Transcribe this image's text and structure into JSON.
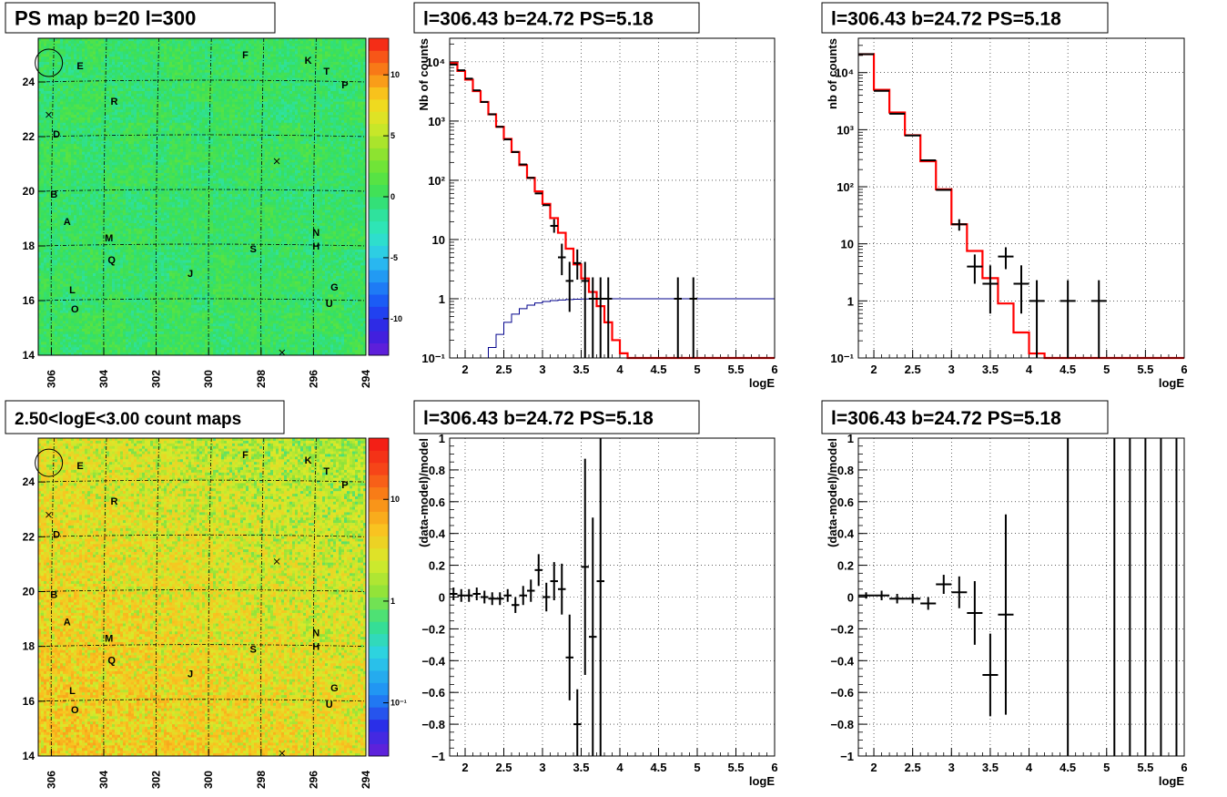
{
  "page": {
    "background": "#ffffff"
  },
  "colors": {
    "data": "#000000",
    "model": "#ff0000",
    "efficiency": "#00008b",
    "grid": "#000000"
  },
  "maps": [
    {
      "id": "psmap",
      "title": "PS map b=20 l=300",
      "xticks": [
        "306",
        "304",
        "302",
        "300",
        "298",
        "296",
        "294"
      ],
      "yticks": [
        "14",
        "16",
        "18",
        "20",
        "22",
        "24"
      ],
      "colorbar": {
        "scale": "linear",
        "min": -13,
        "max": 13,
        "ticks": [
          {
            "v": 10,
            "label": "10"
          },
          {
            "v": 5,
            "label": "5"
          },
          {
            "v": 0,
            "label": "0"
          },
          {
            "v": -5,
            "label": "-5"
          },
          {
            "v": -10,
            "label": "-10"
          }
        ]
      },
      "fill": "psmap"
    },
    {
      "id": "countmap",
      "title": "2.50<logE<3.00 count maps",
      "xticks": [
        "306",
        "304",
        "302",
        "300",
        "298",
        "296",
        "294"
      ],
      "yticks": [
        "14",
        "16",
        "18",
        "20",
        "22",
        "24"
      ],
      "colorbar": {
        "scale": "log",
        "min": 0.03,
        "max": 40,
        "ticks": [
          {
            "v": 10,
            "label": "10"
          },
          {
            "v": 1,
            "label": "1"
          },
          {
            "v": 0.1,
            "label": "10⁻¹"
          }
        ]
      },
      "fill": "countmap"
    }
  ],
  "sources": [
    {
      "label": "E",
      "l": 304.9,
      "b": 24.6
    },
    {
      "label": "F",
      "l": 298.6,
      "b": 25.0
    },
    {
      "label": "K",
      "l": 296.2,
      "b": 24.8
    },
    {
      "label": "T",
      "l": 295.5,
      "b": 24.4
    },
    {
      "label": "P",
      "l": 294.8,
      "b": 23.9
    },
    {
      "label": "R",
      "l": 303.6,
      "b": 23.3
    },
    {
      "label": "D",
      "l": 305.8,
      "b": 22.1
    },
    {
      "label": "B",
      "l": 305.9,
      "b": 19.9
    },
    {
      "label": "A",
      "l": 305.4,
      "b": 18.9
    },
    {
      "label": "M",
      "l": 303.8,
      "b": 18.3
    },
    {
      "label": "N",
      "l": 295.9,
      "b": 18.5
    },
    {
      "label": "H",
      "l": 295.9,
      "b": 18.0
    },
    {
      "label": "S",
      "l": 298.3,
      "b": 17.9
    },
    {
      "label": "Q",
      "l": 303.7,
      "b": 17.5
    },
    {
      "label": "J",
      "l": 300.7,
      "b": 17.0
    },
    {
      "label": "G",
      "l": 295.2,
      "b": 16.5
    },
    {
      "label": "L",
      "l": 305.2,
      "b": 16.4
    },
    {
      "label": "U",
      "l": 295.4,
      "b": 15.9
    },
    {
      "label": "O",
      "l": 305.1,
      "b": 15.7
    }
  ],
  "crosses": [
    {
      "l": 306.1,
      "b": 22.8
    },
    {
      "l": 297.4,
      "b": 21.1
    },
    {
      "l": 297.2,
      "b": 14.1
    }
  ],
  "circle": {
    "l": 306.2,
    "b": 24.7
  },
  "chart_data": [
    {
      "type": "line",
      "title": "l=306.43 b=24.72 PS=5.18",
      "xlabel": "logE",
      "ylabel": "Nb of counts",
      "xlim": [
        1.8,
        6
      ],
      "ylim": [
        0.1,
        25000
      ],
      "yscale": "log",
      "xticks": [
        {
          "v": 2,
          "label": "2"
        },
        {
          "v": 2.5,
          "label": "2.5"
        },
        {
          "v": 3,
          "label": "3"
        },
        {
          "v": 3.5,
          "label": "3.5"
        },
        {
          "v": 4,
          "label": "4"
        },
        {
          "v": 4.5,
          "label": "4.5"
        },
        {
          "v": 5,
          "label": "5"
        },
        {
          "v": 5.5,
          "label": "5.5"
        },
        {
          "v": 6,
          "label": "6"
        }
      ],
      "yticks": [
        {
          "v": 0.1,
          "label": "10⁻¹"
        },
        {
          "v": 1,
          "label": "1"
        },
        {
          "v": 10,
          "label": "10"
        },
        {
          "v": 100,
          "label": "10²"
        },
        {
          "v": 1000,
          "label": "10³"
        },
        {
          "v": 10000,
          "label": "10⁴"
        }
      ],
      "grid": true,
      "model_bins": {
        "edges": [
          1.8,
          1.9,
          2.0,
          2.1,
          2.2,
          2.3,
          2.4,
          2.5,
          2.6,
          2.7,
          2.8,
          2.9,
          3.0,
          3.1,
          3.2,
          3.3,
          3.4,
          3.5,
          3.6,
          3.7,
          3.8,
          3.9,
          4.0,
          4.1,
          6.0
        ],
        "values": [
          9500,
          7000,
          5000,
          3200,
          2100,
          1300,
          800,
          500,
          300,
          180,
          110,
          65,
          40,
          23,
          13,
          7,
          3.8,
          2.2,
          1.3,
          0.75,
          0.4,
          0.2,
          0.12,
          0.1
        ]
      },
      "efficiency_bins": {
        "edges": [
          2.2,
          2.3,
          2.4,
          2.5,
          2.6,
          2.7,
          2.8,
          2.9,
          3.0,
          3.1,
          3.2,
          3.3,
          3.4,
          3.5,
          3.6,
          3.7,
          3.8,
          6.0
        ],
        "values": [
          0.1,
          0.15,
          0.25,
          0.4,
          0.55,
          0.68,
          0.78,
          0.85,
          0.9,
          0.93,
          0.95,
          0.97,
          0.98,
          0.99,
          0.99,
          1.0,
          1.0
        ]
      },
      "points": [
        {
          "x": 1.85,
          "y": 9000,
          "xe": 0.05
        },
        {
          "x": 1.95,
          "y": 7200,
          "xe": 0.05
        },
        {
          "x": 2.05,
          "y": 5200,
          "xe": 0.05
        },
        {
          "x": 2.15,
          "y": 3300,
          "xe": 0.05
        },
        {
          "x": 2.25,
          "y": 2100,
          "xe": 0.05
        },
        {
          "x": 2.35,
          "y": 1300,
          "xe": 0.05
        },
        {
          "x": 2.45,
          "y": 800,
          "xe": 0.05
        },
        {
          "x": 2.55,
          "y": 490,
          "xe": 0.05
        },
        {
          "x": 2.65,
          "y": 300,
          "xe": 0.05
        },
        {
          "x": 2.75,
          "y": 185,
          "xe": 0.05
        },
        {
          "x": 2.85,
          "y": 110,
          "xe": 0.05
        },
        {
          "x": 2.95,
          "y": 60,
          "xe": 0.05
        },
        {
          "x": 3.05,
          "y": 38,
          "xe": 0.05
        },
        {
          "x": 3.15,
          "y": 17,
          "xe": 0.05,
          "ylo": 13,
          "yhi": 22
        },
        {
          "x": 3.25,
          "y": 5,
          "xe": 0.05,
          "ylo": 2.5,
          "yhi": 8.5
        },
        {
          "x": 3.35,
          "y": 2,
          "xe": 0.05,
          "ylo": 0.6,
          "yhi": 4.2
        },
        {
          "x": 3.45,
          "y": 4,
          "xe": 0.05,
          "ylo": 2.1,
          "yhi": 6.8
        },
        {
          "x": 3.55,
          "y": 2,
          "xe": 0.05,
          "ylo": 0.1,
          "yhi": 4.2
        },
        {
          "x": 3.65,
          "y": 1,
          "xe": 0.05,
          "ylo": 0.1,
          "yhi": 2.3
        },
        {
          "x": 3.75,
          "y": 1,
          "xe": 0.05,
          "ylo": 0.1,
          "yhi": 2.3
        },
        {
          "x": 3.85,
          "y": 1,
          "xe": 0.05,
          "ylo": 0.1,
          "yhi": 2.3
        },
        {
          "x": 4.75,
          "y": 1,
          "xe": 0.05,
          "ylo": 0.1,
          "yhi": 2.3
        },
        {
          "x": 4.95,
          "y": 1,
          "xe": 0.05,
          "ylo": 0.1,
          "yhi": 2.3
        }
      ]
    },
    {
      "type": "line",
      "title": "l=306.43 b=24.72 PS=5.18",
      "xlabel": "logE",
      "ylabel": "nb of counts",
      "xlim": [
        1.8,
        6
      ],
      "ylim": [
        0.1,
        40000
      ],
      "yscale": "log",
      "xticks": [
        {
          "v": 2,
          "label": "2"
        },
        {
          "v": 2.5,
          "label": "2.5"
        },
        {
          "v": 3,
          "label": "3"
        },
        {
          "v": 3.5,
          "label": "3.5"
        },
        {
          "v": 4,
          "label": "4"
        },
        {
          "v": 4.5,
          "label": "4.5"
        },
        {
          "v": 5,
          "label": "5"
        },
        {
          "v": 5.5,
          "label": "5.5"
        },
        {
          "v": 6,
          "label": "6"
        }
      ],
      "yticks": [
        {
          "v": 0.1,
          "label": "10⁻¹"
        },
        {
          "v": 1,
          "label": "1"
        },
        {
          "v": 10,
          "label": "10"
        },
        {
          "v": 100,
          "label": "10²"
        },
        {
          "v": 1000,
          "label": "10³"
        },
        {
          "v": 10000,
          "label": "10⁴"
        }
      ],
      "grid": true,
      "model_bins": {
        "edges": [
          1.8,
          2.0,
          2.2,
          2.4,
          2.6,
          2.8,
          3.0,
          3.2,
          3.4,
          3.6,
          3.8,
          4.0,
          4.2,
          6.0
        ],
        "values": [
          21000,
          5000,
          2000,
          800,
          280,
          90,
          22,
          7.5,
          2.5,
          0.9,
          0.28,
          0.12,
          0.1
        ]
      },
      "efficiency_bins": null,
      "points": [
        {
          "x": 1.9,
          "y": 21000,
          "xe": 0.1
        },
        {
          "x": 2.1,
          "y": 4800,
          "xe": 0.1
        },
        {
          "x": 2.3,
          "y": 1900,
          "xe": 0.1
        },
        {
          "x": 2.5,
          "y": 790,
          "xe": 0.1
        },
        {
          "x": 2.7,
          "y": 290,
          "xe": 0.1
        },
        {
          "x": 2.9,
          "y": 88,
          "xe": 0.1
        },
        {
          "x": 3.1,
          "y": 22,
          "xe": 0.1,
          "ylo": 17,
          "yhi": 27
        },
        {
          "x": 3.3,
          "y": 4,
          "xe": 0.1,
          "ylo": 2,
          "yhi": 6.5
        },
        {
          "x": 3.5,
          "y": 2,
          "xe": 0.1,
          "ylo": 0.6,
          "yhi": 4.2
        },
        {
          "x": 3.7,
          "y": 6,
          "xe": 0.1,
          "ylo": 3.6,
          "yhi": 8.7
        },
        {
          "x": 3.9,
          "y": 2,
          "xe": 0.1,
          "ylo": 0.6,
          "yhi": 4.2
        },
        {
          "x": 4.1,
          "y": 1,
          "xe": 0.1,
          "ylo": 0.1,
          "yhi": 2.3
        },
        {
          "x": 4.5,
          "y": 1,
          "xe": 0.1,
          "ylo": 0.1,
          "yhi": 2.3
        },
        {
          "x": 4.9,
          "y": 1,
          "xe": 0.1,
          "ylo": 0.1,
          "yhi": 2.3
        }
      ]
    },
    {
      "type": "scatter",
      "title": "l=306.43 b=24.72 PS=5.18",
      "xlabel": "logE",
      "ylabel": "(data-model)/model",
      "xlim": [
        1.8,
        6
      ],
      "ylim": [
        -1,
        1
      ],
      "yscale": "linear",
      "xticks": [
        {
          "v": 2,
          "label": "2"
        },
        {
          "v": 2.5,
          "label": "2.5"
        },
        {
          "v": 3,
          "label": "3"
        },
        {
          "v": 3.5,
          "label": "3.5"
        },
        {
          "v": 4,
          "label": "4"
        },
        {
          "v": 4.5,
          "label": "4.5"
        },
        {
          "v": 5,
          "label": "5"
        },
        {
          "v": 5.5,
          "label": "5.5"
        },
        {
          "v": 6,
          "label": "6"
        }
      ],
      "yticks": [
        {
          "v": -1,
          "label": "−1"
        },
        {
          "v": -0.8,
          "label": "−0.8"
        },
        {
          "v": -0.6,
          "label": "−0.6"
        },
        {
          "v": -0.4,
          "label": "−0.4"
        },
        {
          "v": -0.2,
          "label": "−0.2"
        },
        {
          "v": 0,
          "label": "0"
        },
        {
          "v": 0.2,
          "label": "0.2"
        },
        {
          "v": 0.4,
          "label": "0.4"
        },
        {
          "v": 0.6,
          "label": "0.6"
        },
        {
          "v": 0.8,
          "label": "0.8"
        },
        {
          "v": 1,
          "label": "1"
        }
      ],
      "grid": true,
      "points": [
        {
          "x": 1.85,
          "y": 0.02,
          "xe": 0.05,
          "ye": 0.04
        },
        {
          "x": 1.95,
          "y": 0.01,
          "xe": 0.05,
          "ye": 0.04
        },
        {
          "x": 2.05,
          "y": 0.01,
          "xe": 0.05,
          "ye": 0.04
        },
        {
          "x": 2.15,
          "y": 0.02,
          "xe": 0.05,
          "ye": 0.04
        },
        {
          "x": 2.25,
          "y": 0.0,
          "xe": 0.05,
          "ye": 0.04
        },
        {
          "x": 2.35,
          "y": -0.01,
          "xe": 0.05,
          "ye": 0.04
        },
        {
          "x": 2.45,
          "y": -0.01,
          "xe": 0.05,
          "ye": 0.04
        },
        {
          "x": 2.55,
          "y": 0.01,
          "xe": 0.05,
          "ye": 0.04
        },
        {
          "x": 2.65,
          "y": -0.05,
          "xe": 0.05,
          "ye": 0.05
        },
        {
          "x": 2.75,
          "y": 0.01,
          "xe": 0.05,
          "ye": 0.06
        },
        {
          "x": 2.85,
          "y": 0.04,
          "xe": 0.05,
          "ye": 0.07
        },
        {
          "x": 2.95,
          "y": 0.17,
          "xe": 0.05,
          "ye": 0.1
        },
        {
          "x": 3.05,
          "y": 0.0,
          "xe": 0.05,
          "ye": 0.09
        },
        {
          "x": 3.15,
          "y": 0.1,
          "xe": 0.05,
          "ye": 0.12
        },
        {
          "x": 3.25,
          "y": 0.05,
          "xe": 0.05,
          "ye": 0.16
        },
        {
          "x": 3.35,
          "y": -0.38,
          "xe": 0.05,
          "ye": 0.27
        },
        {
          "x": 3.45,
          "y": -0.8,
          "xe": 0.05,
          "ye": 0.22
        },
        {
          "x": 3.55,
          "y": 0.19,
          "xe": 0.05,
          "ye": 0.68
        },
        {
          "x": 3.65,
          "y": -0.25,
          "xe": 0.05,
          "ye": 0.75
        },
        {
          "x": 3.75,
          "y": 0.1,
          "xe": 0.05,
          "ye": 1.5
        }
      ]
    },
    {
      "type": "scatter",
      "title": "l=306.43 b=24.72 PS=5.18",
      "xlabel": "logE",
      "ylabel": "(data-model)/model",
      "xlim": [
        1.8,
        6
      ],
      "ylim": [
        -1,
        1
      ],
      "yscale": "linear",
      "xticks": [
        {
          "v": 2,
          "label": "2"
        },
        {
          "v": 2.5,
          "label": "2.5"
        },
        {
          "v": 3,
          "label": "3"
        },
        {
          "v": 3.5,
          "label": "3.5"
        },
        {
          "v": 4,
          "label": "4"
        },
        {
          "v": 4.5,
          "label": "4.5"
        },
        {
          "v": 5,
          "label": "5"
        },
        {
          "v": 5.5,
          "label": "5.5"
        },
        {
          "v": 6,
          "label": "6"
        }
      ],
      "yticks": [
        {
          "v": -1,
          "label": "−1"
        },
        {
          "v": -0.8,
          "label": "−0.8"
        },
        {
          "v": -0.6,
          "label": "−0.6"
        },
        {
          "v": -0.4,
          "label": "−0.4"
        },
        {
          "v": -0.2,
          "label": "−0.2"
        },
        {
          "v": 0,
          "label": "0"
        },
        {
          "v": 0.2,
          "label": "0.2"
        },
        {
          "v": 0.4,
          "label": "0.4"
        },
        {
          "v": 0.6,
          "label": "0.6"
        },
        {
          "v": 0.8,
          "label": "0.8"
        },
        {
          "v": 1,
          "label": "1"
        }
      ],
      "grid": true,
      "points": [
        {
          "x": 1.9,
          "y": 0.01,
          "xe": 0.1,
          "ye": 0.02
        },
        {
          "x": 2.1,
          "y": 0.01,
          "xe": 0.1,
          "ye": 0.03
        },
        {
          "x": 2.3,
          "y": -0.01,
          "xe": 0.1,
          "ye": 0.03
        },
        {
          "x": 2.5,
          "y": -0.01,
          "xe": 0.1,
          "ye": 0.03
        },
        {
          "x": 2.7,
          "y": -0.04,
          "xe": 0.1,
          "ye": 0.04
        },
        {
          "x": 2.9,
          "y": 0.08,
          "xe": 0.1,
          "ye": 0.06
        },
        {
          "x": 3.1,
          "y": 0.03,
          "xe": 0.1,
          "ye": 0.1
        },
        {
          "x": 3.3,
          "y": -0.1,
          "xe": 0.1,
          "ye": 0.2
        },
        {
          "x": 3.5,
          "y": -0.49,
          "xe": 0.1,
          "ye": 0.26
        },
        {
          "x": 3.7,
          "y": -0.11,
          "xe": 0.1,
          "ye": 0.63
        },
        {
          "x": 4.5,
          "y": 0,
          "xe": 0,
          "ye": 2
        },
        {
          "x": 5.1,
          "y": 0,
          "xe": 0,
          "ye": 2
        },
        {
          "x": 5.3,
          "y": 0,
          "xe": 0,
          "ye": 2
        },
        {
          "x": 5.5,
          "y": 0,
          "xe": 0,
          "ye": 2
        },
        {
          "x": 5.7,
          "y": 0,
          "xe": 0,
          "ye": 2
        },
        {
          "x": 5.9,
          "y": 0,
          "xe": 0,
          "ye": 2
        }
      ]
    }
  ]
}
